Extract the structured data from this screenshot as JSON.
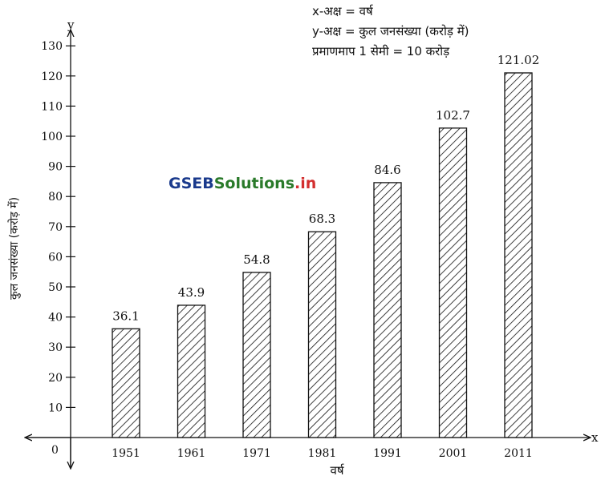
{
  "watermark": {
    "part1": "GSEB",
    "part2": "Solutions",
    "part3": ".in"
  },
  "legend": [
    "x-अक्ष = वर्ष",
    "y-अक्ष = कुल जनसंख्या (करोड़ में)",
    "प्रमाणमाप 1 सेमी = 10 करोड़"
  ],
  "axis_letters": {
    "x": "x",
    "y": "y",
    "origin": "0"
  },
  "colors": {
    "bar_fill": "#ffffff",
    "bar_hatch": "#111111",
    "axis": "#111111"
  },
  "chart_data": {
    "type": "bar",
    "title": "",
    "xlabel": "वर्ष",
    "ylabel": "कुल जनसंख्या (करोड़ में)",
    "categories": [
      "1951",
      "1961",
      "1971",
      "1981",
      "1991",
      "2001",
      "2011"
    ],
    "values": [
      36.1,
      43.9,
      54.8,
      68.3,
      84.6,
      102.7,
      121.02
    ],
    "value_labels": [
      "36.1",
      "43.9",
      "54.8",
      "68.3",
      "84.6",
      "102.7",
      "121.02"
    ],
    "yticks": [
      10,
      20,
      30,
      40,
      50,
      60,
      70,
      80,
      90,
      100,
      110,
      120,
      130
    ],
    "ylim": [
      0,
      130
    ],
    "grid": false
  }
}
